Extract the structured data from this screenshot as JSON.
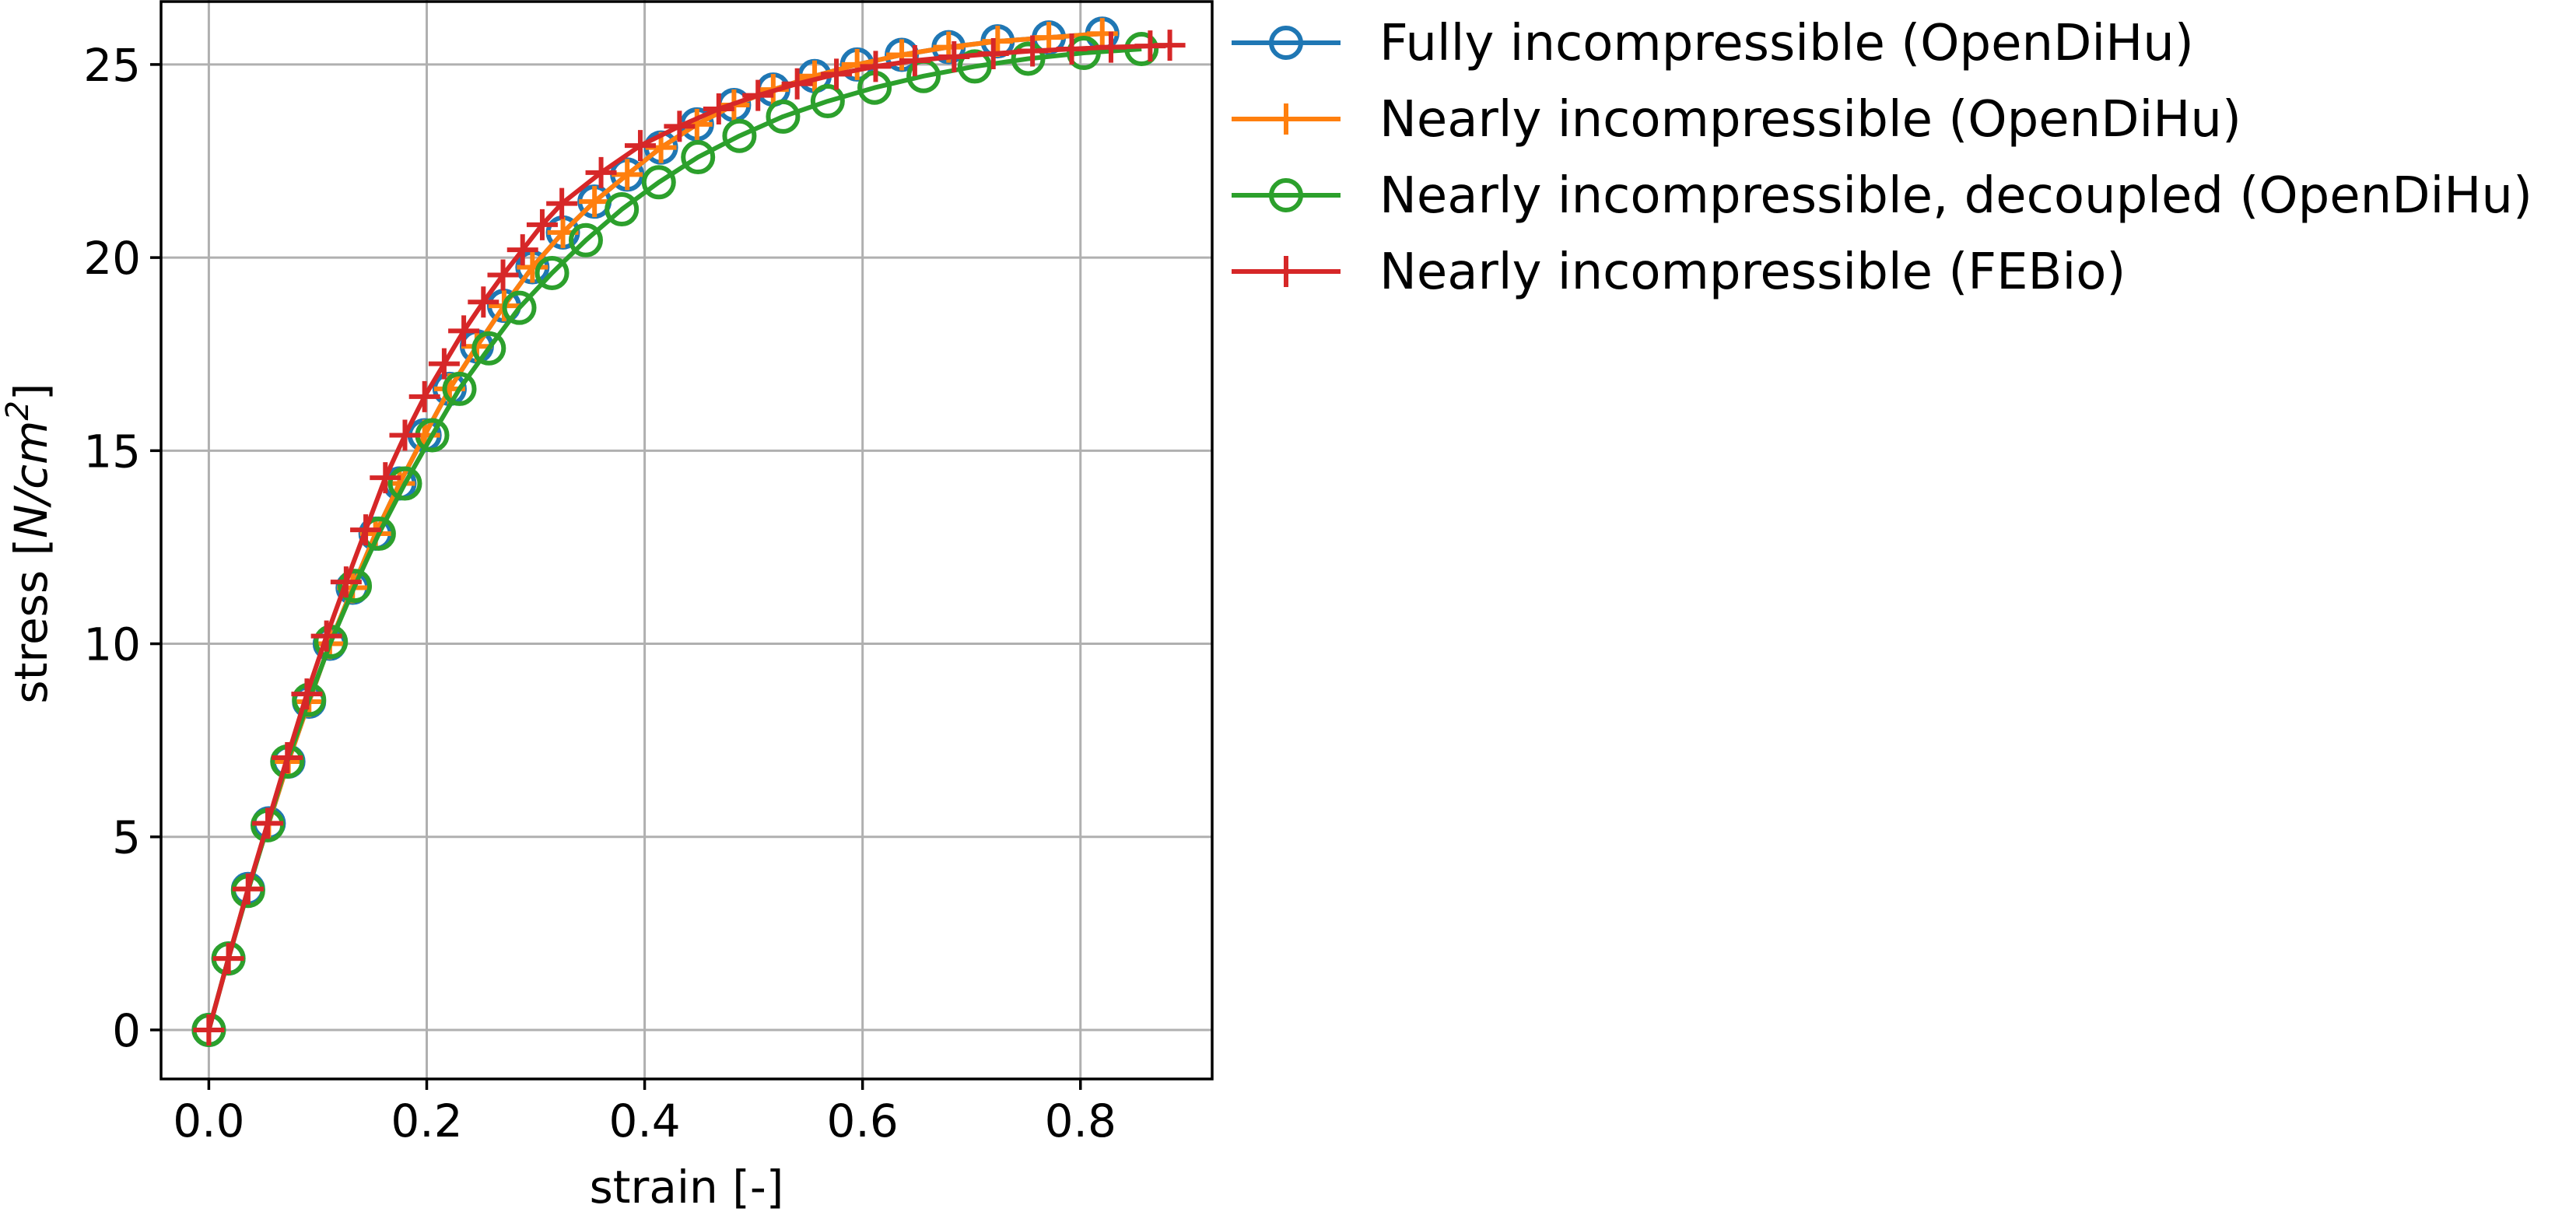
{
  "chart_data": {
    "type": "line",
    "title": "",
    "xlabel": "strain [-]",
    "ylabel_parts": [
      "stress [",
      "N/cm",
      "2",
      "]"
    ],
    "xlim": [
      -0.04385,
      0.92085
    ],
    "ylim": [
      -1.27,
      26.67
    ],
    "xticks": [
      0.0,
      0.2,
      0.4,
      0.6,
      0.8
    ],
    "xtick_labels": [
      "0.0",
      "0.2",
      "0.4",
      "0.6",
      "0.8"
    ],
    "yticks": [
      0,
      5,
      10,
      15,
      20,
      25
    ],
    "ytick_labels": [
      "0",
      "5",
      "10",
      "15",
      "20",
      "25"
    ],
    "grid": true,
    "legend_position": "outside-right",
    "series": [
      {
        "name": "Fully incompressible (OpenDiHu)",
        "color": "#1f77b4",
        "marker": "circle",
        "x": [
          0.0,
          0.018,
          0.036,
          0.055,
          0.073,
          0.092,
          0.111,
          0.132,
          0.153,
          0.175,
          0.198,
          0.221,
          0.246,
          0.271,
          0.297,
          0.325,
          0.354,
          0.384,
          0.415,
          0.448,
          0.482,
          0.518,
          0.556,
          0.595,
          0.636,
          0.679,
          0.724,
          0.771,
          0.82
        ],
        "y": [
          0.0,
          1.85,
          3.65,
          5.35,
          6.95,
          8.5,
          10.0,
          11.45,
          12.85,
          14.15,
          15.4,
          16.6,
          17.7,
          18.75,
          19.75,
          20.65,
          21.45,
          22.15,
          22.85,
          23.45,
          23.95,
          24.35,
          24.7,
          25.0,
          25.25,
          25.45,
          25.6,
          25.7,
          25.8
        ]
      },
      {
        "name": "Nearly incompressible (OpenDiHu)",
        "color": "#ff7f0e",
        "marker": "plus",
        "x": [
          0.0,
          0.018,
          0.036,
          0.055,
          0.073,
          0.092,
          0.111,
          0.132,
          0.153,
          0.175,
          0.198,
          0.221,
          0.246,
          0.271,
          0.297,
          0.325,
          0.354,
          0.384,
          0.415,
          0.448,
          0.482,
          0.518,
          0.556,
          0.595,
          0.636,
          0.679,
          0.724,
          0.771,
          0.82
        ],
        "y": [
          0.0,
          1.85,
          3.65,
          5.35,
          6.95,
          8.5,
          10.0,
          11.45,
          12.85,
          14.15,
          15.4,
          16.6,
          17.7,
          18.75,
          19.75,
          20.65,
          21.45,
          22.15,
          22.85,
          23.45,
          23.95,
          24.35,
          24.7,
          25.0,
          25.25,
          25.45,
          25.6,
          25.7,
          25.8
        ]
      },
      {
        "name": "Nearly incompressible, decoupled (OpenDiHu)",
        "color": "#2ca02c",
        "marker": "circle",
        "x": [
          0.0,
          0.018,
          0.036,
          0.054,
          0.072,
          0.092,
          0.112,
          0.134,
          0.156,
          0.18,
          0.205,
          0.23,
          0.257,
          0.285,
          0.315,
          0.346,
          0.379,
          0.413,
          0.449,
          0.487,
          0.527,
          0.568,
          0.611,
          0.656,
          0.703,
          0.752,
          0.803,
          0.856
        ],
        "y": [
          0.0,
          1.85,
          3.6,
          5.3,
          6.95,
          8.55,
          10.05,
          11.5,
          12.85,
          14.15,
          15.4,
          16.6,
          17.65,
          18.7,
          19.6,
          20.45,
          21.25,
          21.95,
          22.6,
          23.15,
          23.65,
          24.05,
          24.4,
          24.7,
          24.95,
          25.15,
          25.3,
          25.4
        ]
      },
      {
        "name": "Nearly incompressible (FEBio)",
        "color": "#d62728",
        "marker": "plus",
        "x": [
          0.0,
          0.018,
          0.036,
          0.054,
          0.072,
          0.09,
          0.108,
          0.126,
          0.144,
          0.162,
          0.18,
          0.198,
          0.216,
          0.234,
          0.252,
          0.27,
          0.288,
          0.306,
          0.324,
          0.36,
          0.396,
          0.432,
          0.468,
          0.504,
          0.54,
          0.576,
          0.612,
          0.648,
          0.684,
          0.72,
          0.756,
          0.792,
          0.828,
          0.864,
          0.882
        ],
        "y": [
          0.0,
          1.85,
          3.65,
          5.35,
          7.05,
          8.7,
          10.2,
          11.6,
          12.95,
          14.3,
          15.4,
          16.4,
          17.25,
          18.1,
          18.85,
          19.55,
          20.2,
          20.85,
          21.4,
          22.2,
          22.9,
          23.4,
          23.85,
          24.2,
          24.5,
          24.75,
          24.95,
          25.1,
          25.2,
          25.28,
          25.35,
          25.4,
          25.45,
          25.48,
          25.5
        ]
      }
    ]
  }
}
